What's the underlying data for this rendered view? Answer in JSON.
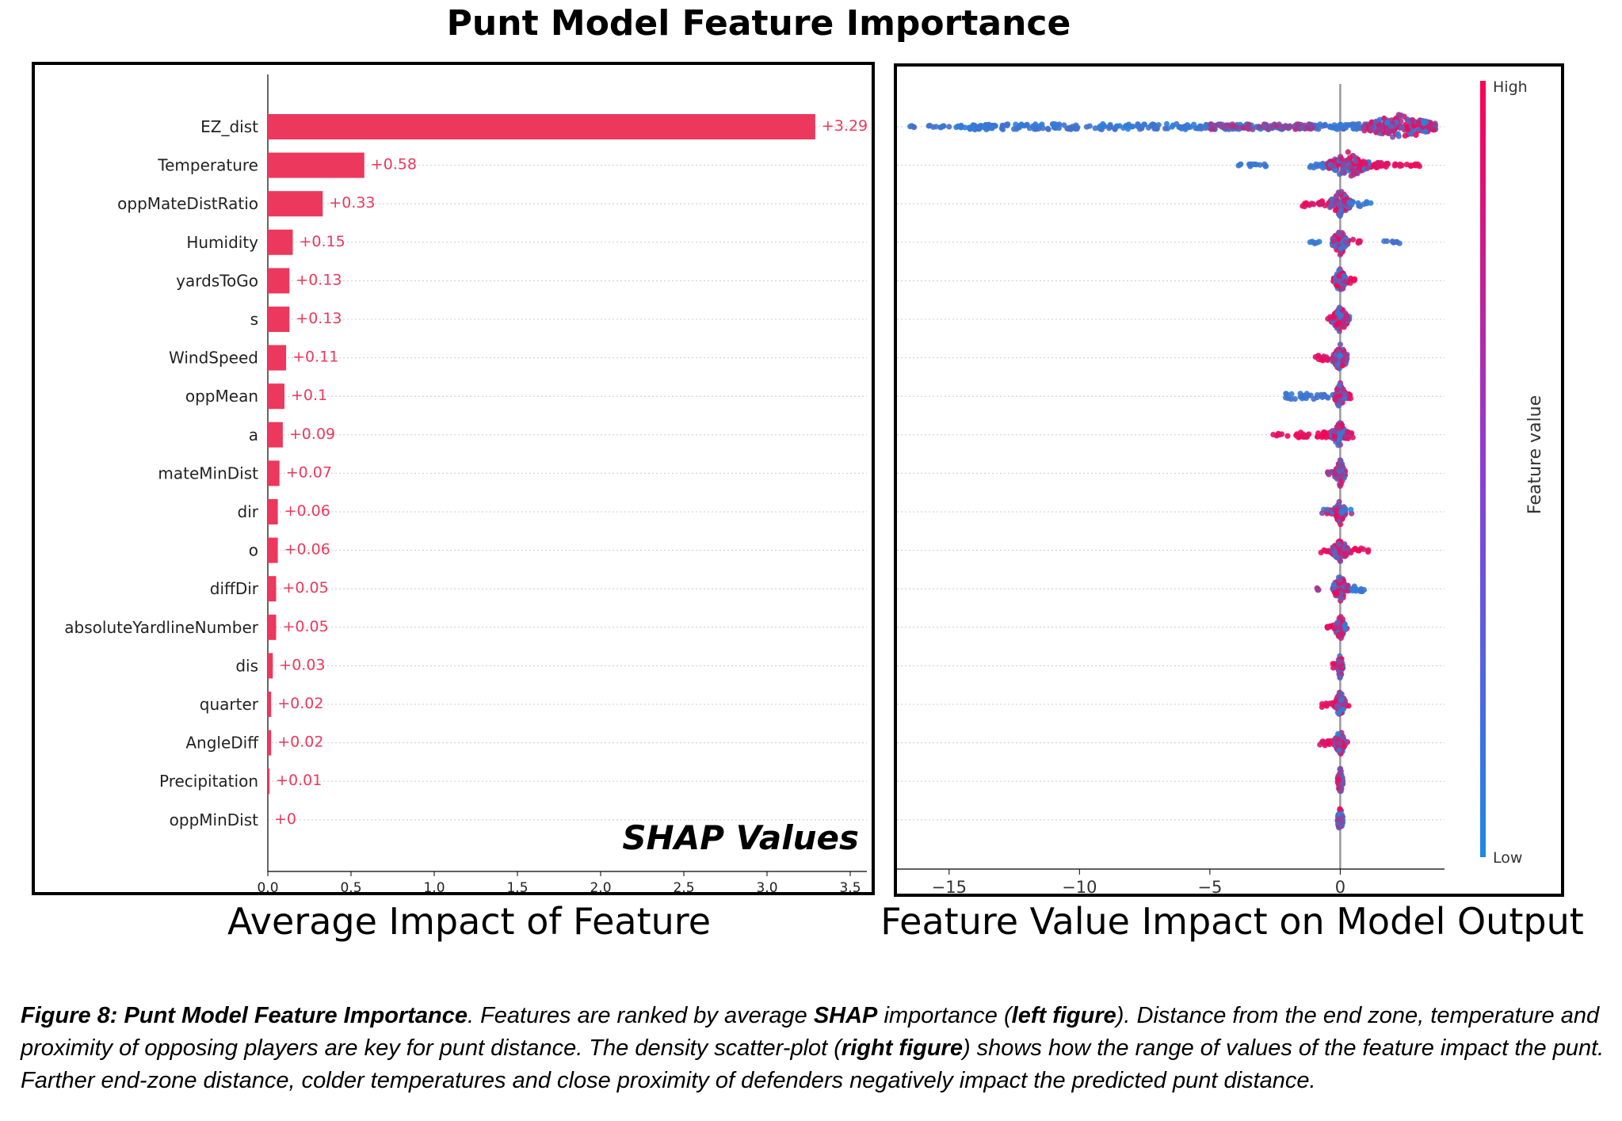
{
  "title": "Punt Model Feature Importance",
  "left_subtitle": "Average Impact of Feature",
  "right_subtitle": "Feature Value Impact on Model Output",
  "shap_label": "SHAP Values",
  "caption": {
    "label": "Figure 8: Punt Model Feature Importance",
    "t1": ". Features are ranked by average ",
    "shap": "SHAP",
    "t2": " importance (",
    "left_fig": "left figure",
    "t3": "). Distance from the end zone, temperature and proximity of opposing players are key for punt distance. The density scatter-plot (",
    "right_fig": "right figure",
    "t4": ") shows how the range of values of the feature impact the punt. Farther end-zone distance, colder temperatures and close proximity of defenders negatively impact the predicted punt distance."
  },
  "colors": {
    "bar": "#ec385d",
    "high": "#ff0052",
    "low": "#1e88e5"
  },
  "chart_data": [
    {
      "type": "bar",
      "orientation": "horizontal",
      "categories": [
        "EZ_dist",
        "Temperature",
        "oppMateDistRatio",
        "Humidity",
        "yardsToGo",
        "s",
        "WindSpeed",
        "oppMean",
        "a",
        "mateMinDist",
        "dir",
        "o",
        "diffDir",
        "absoluteYardlineNumber",
        "dis",
        "quarter",
        "AngleDiff",
        "Precipitation",
        "oppMinDist"
      ],
      "values": [
        3.29,
        0.58,
        0.33,
        0.15,
        0.13,
        0.13,
        0.11,
        0.1,
        0.09,
        0.07,
        0.06,
        0.06,
        0.05,
        0.05,
        0.03,
        0.02,
        0.02,
        0.01,
        0
      ],
      "value_labels": [
        "+3.29",
        "+0.58",
        "+0.33",
        "+0.15",
        "+0.13",
        "+0.13",
        "+0.11",
        "+0.1",
        "+0.09",
        "+0.07",
        "+0.06",
        "+0.06",
        "+0.05",
        "+0.05",
        "+0.03",
        "+0.02",
        "+0.02",
        "+0.01",
        "+0"
      ],
      "xlim": [
        0,
        3.6
      ],
      "xticks": [
        0.0,
        0.5,
        1.0,
        1.5,
        2.0,
        2.5,
        3.0,
        3.5
      ],
      "xtick_labels": [
        "0.0",
        "0.5",
        "1.0",
        "1.5",
        "2.0",
        "2.5",
        "3.0",
        "3.5"
      ],
      "grid": true
    },
    {
      "type": "scatter",
      "subtype": "beeswarm",
      "rows": 19,
      "xlim": [
        -17,
        4
      ],
      "xticks": [
        -15,
        -10,
        -5,
        0
      ],
      "xtick_labels": [
        "−15",
        "−10",
        "−5",
        "0"
      ],
      "colorbar": {
        "label": "Feature value",
        "high": "High",
        "low": "Low"
      },
      "row_spreads": [
        {
          "segments": [
            [
              -14.2,
              2.0,
              "low"
            ],
            [
              -5,
              -1,
              "mid"
            ],
            [
              1.0,
              3.0,
              "high"
            ]
          ],
          "outliers": [
            [
              -16.5,
              -13.2,
              "low"
            ]
          ],
          "blob": [
            2.3,
            1.4
          ]
        },
        {
          "segments": [
            [
              -1.2,
              -0.2,
              "low"
            ],
            [
              -0.2,
              2.0,
              "high"
            ]
          ],
          "outliers": [
            [
              -4.0,
              -2.8,
              "low"
            ],
            [
              2.0,
              3.2,
              "high"
            ]
          ],
          "blob": [
            0.3,
            0.8
          ]
        },
        {
          "segments": [
            [
              -1.5,
              -0.1,
              "high"
            ],
            [
              0.0,
              1.2,
              "low"
            ]
          ],
          "outliers": [],
          "blob": [
            0.0,
            0.4
          ]
        },
        {
          "segments": [
            [
              -0.3,
              0.5,
              "mix"
            ]
          ],
          "outliers": [
            [
              -1.2,
              -0.7,
              "low"
            ],
            [
              0.6,
              0.9,
              "high"
            ],
            [
              1.6,
              2.3,
              "low"
            ]
          ],
          "blob": [
            0.0,
            0.3
          ]
        },
        {
          "segments": [
            [
              -0.3,
              0.6,
              "high"
            ]
          ],
          "outliers": [],
          "blob": [
            0.0,
            0.2
          ]
        },
        {
          "segments": [
            [
              -0.5,
              0.3,
              "high"
            ],
            [
              0.0,
              0.4,
              "low"
            ]
          ],
          "outliers": [],
          "blob": [
            0.0,
            0.3
          ]
        },
        {
          "segments": [
            [
              -1.0,
              -0.1,
              "high"
            ],
            [
              0.0,
              0.2,
              "low"
            ]
          ],
          "outliers": [],
          "blob": [
            0.0,
            0.3
          ]
        },
        {
          "segments": [
            [
              -2.1,
              -0.1,
              "low"
            ],
            [
              0.0,
              0.4,
              "high"
            ]
          ],
          "outliers": [],
          "blob": [
            0.0,
            0.2
          ]
        },
        {
          "segments": [
            [
              -1.8,
              0.5,
              "high"
            ],
            [
              -0.5,
              0.0,
              "low"
            ]
          ],
          "outliers": [
            [
              -2.6,
              -2.0,
              "high"
            ]
          ],
          "blob": [
            0.0,
            0.3
          ]
        },
        {
          "segments": [
            [
              -0.5,
              0.2,
              "mix"
            ]
          ],
          "outliers": [],
          "blob": [
            0.0,
            0.2
          ]
        },
        {
          "segments": [
            [
              -0.7,
              0.5,
              "mix"
            ]
          ],
          "outliers": [],
          "blob": [
            0.0,
            0.2
          ]
        },
        {
          "segments": [
            [
              -0.8,
              1.1,
              "high"
            ]
          ],
          "outliers": [],
          "blob": [
            0.0,
            0.3
          ]
        },
        {
          "segments": [
            [
              -0.2,
              1.0,
              "low"
            ]
          ],
          "outliers": [
            [
              -0.9,
              -0.8,
              "mid"
            ]
          ],
          "blob": [
            0.0,
            0.3
          ]
        },
        {
          "segments": [
            [
              -0.5,
              0.3,
              "high"
            ]
          ],
          "outliers": [],
          "blob": [
            0.0,
            0.2
          ]
        },
        {
          "segments": [
            [
              -0.3,
              0.2,
              "high"
            ]
          ],
          "outliers": [],
          "blob": [
            0.0,
            0.1
          ]
        },
        {
          "segments": [
            [
              -0.7,
              0.4,
              "high"
            ]
          ],
          "outliers": [],
          "blob": [
            0.0,
            0.2
          ]
        },
        {
          "segments": [
            [
              -0.8,
              0.3,
              "high"
            ]
          ],
          "outliers": [],
          "blob": [
            0.0,
            0.2
          ]
        },
        {
          "segments": [
            [
              -0.1,
              0.1,
              "low"
            ]
          ],
          "outliers": [],
          "blob": [
            0.0,
            0.1
          ]
        },
        {
          "segments": [
            [
              -0.1,
              0.1,
              "mix"
            ]
          ],
          "outliers": [],
          "blob": [
            0.0,
            0.1
          ]
        }
      ]
    }
  ]
}
